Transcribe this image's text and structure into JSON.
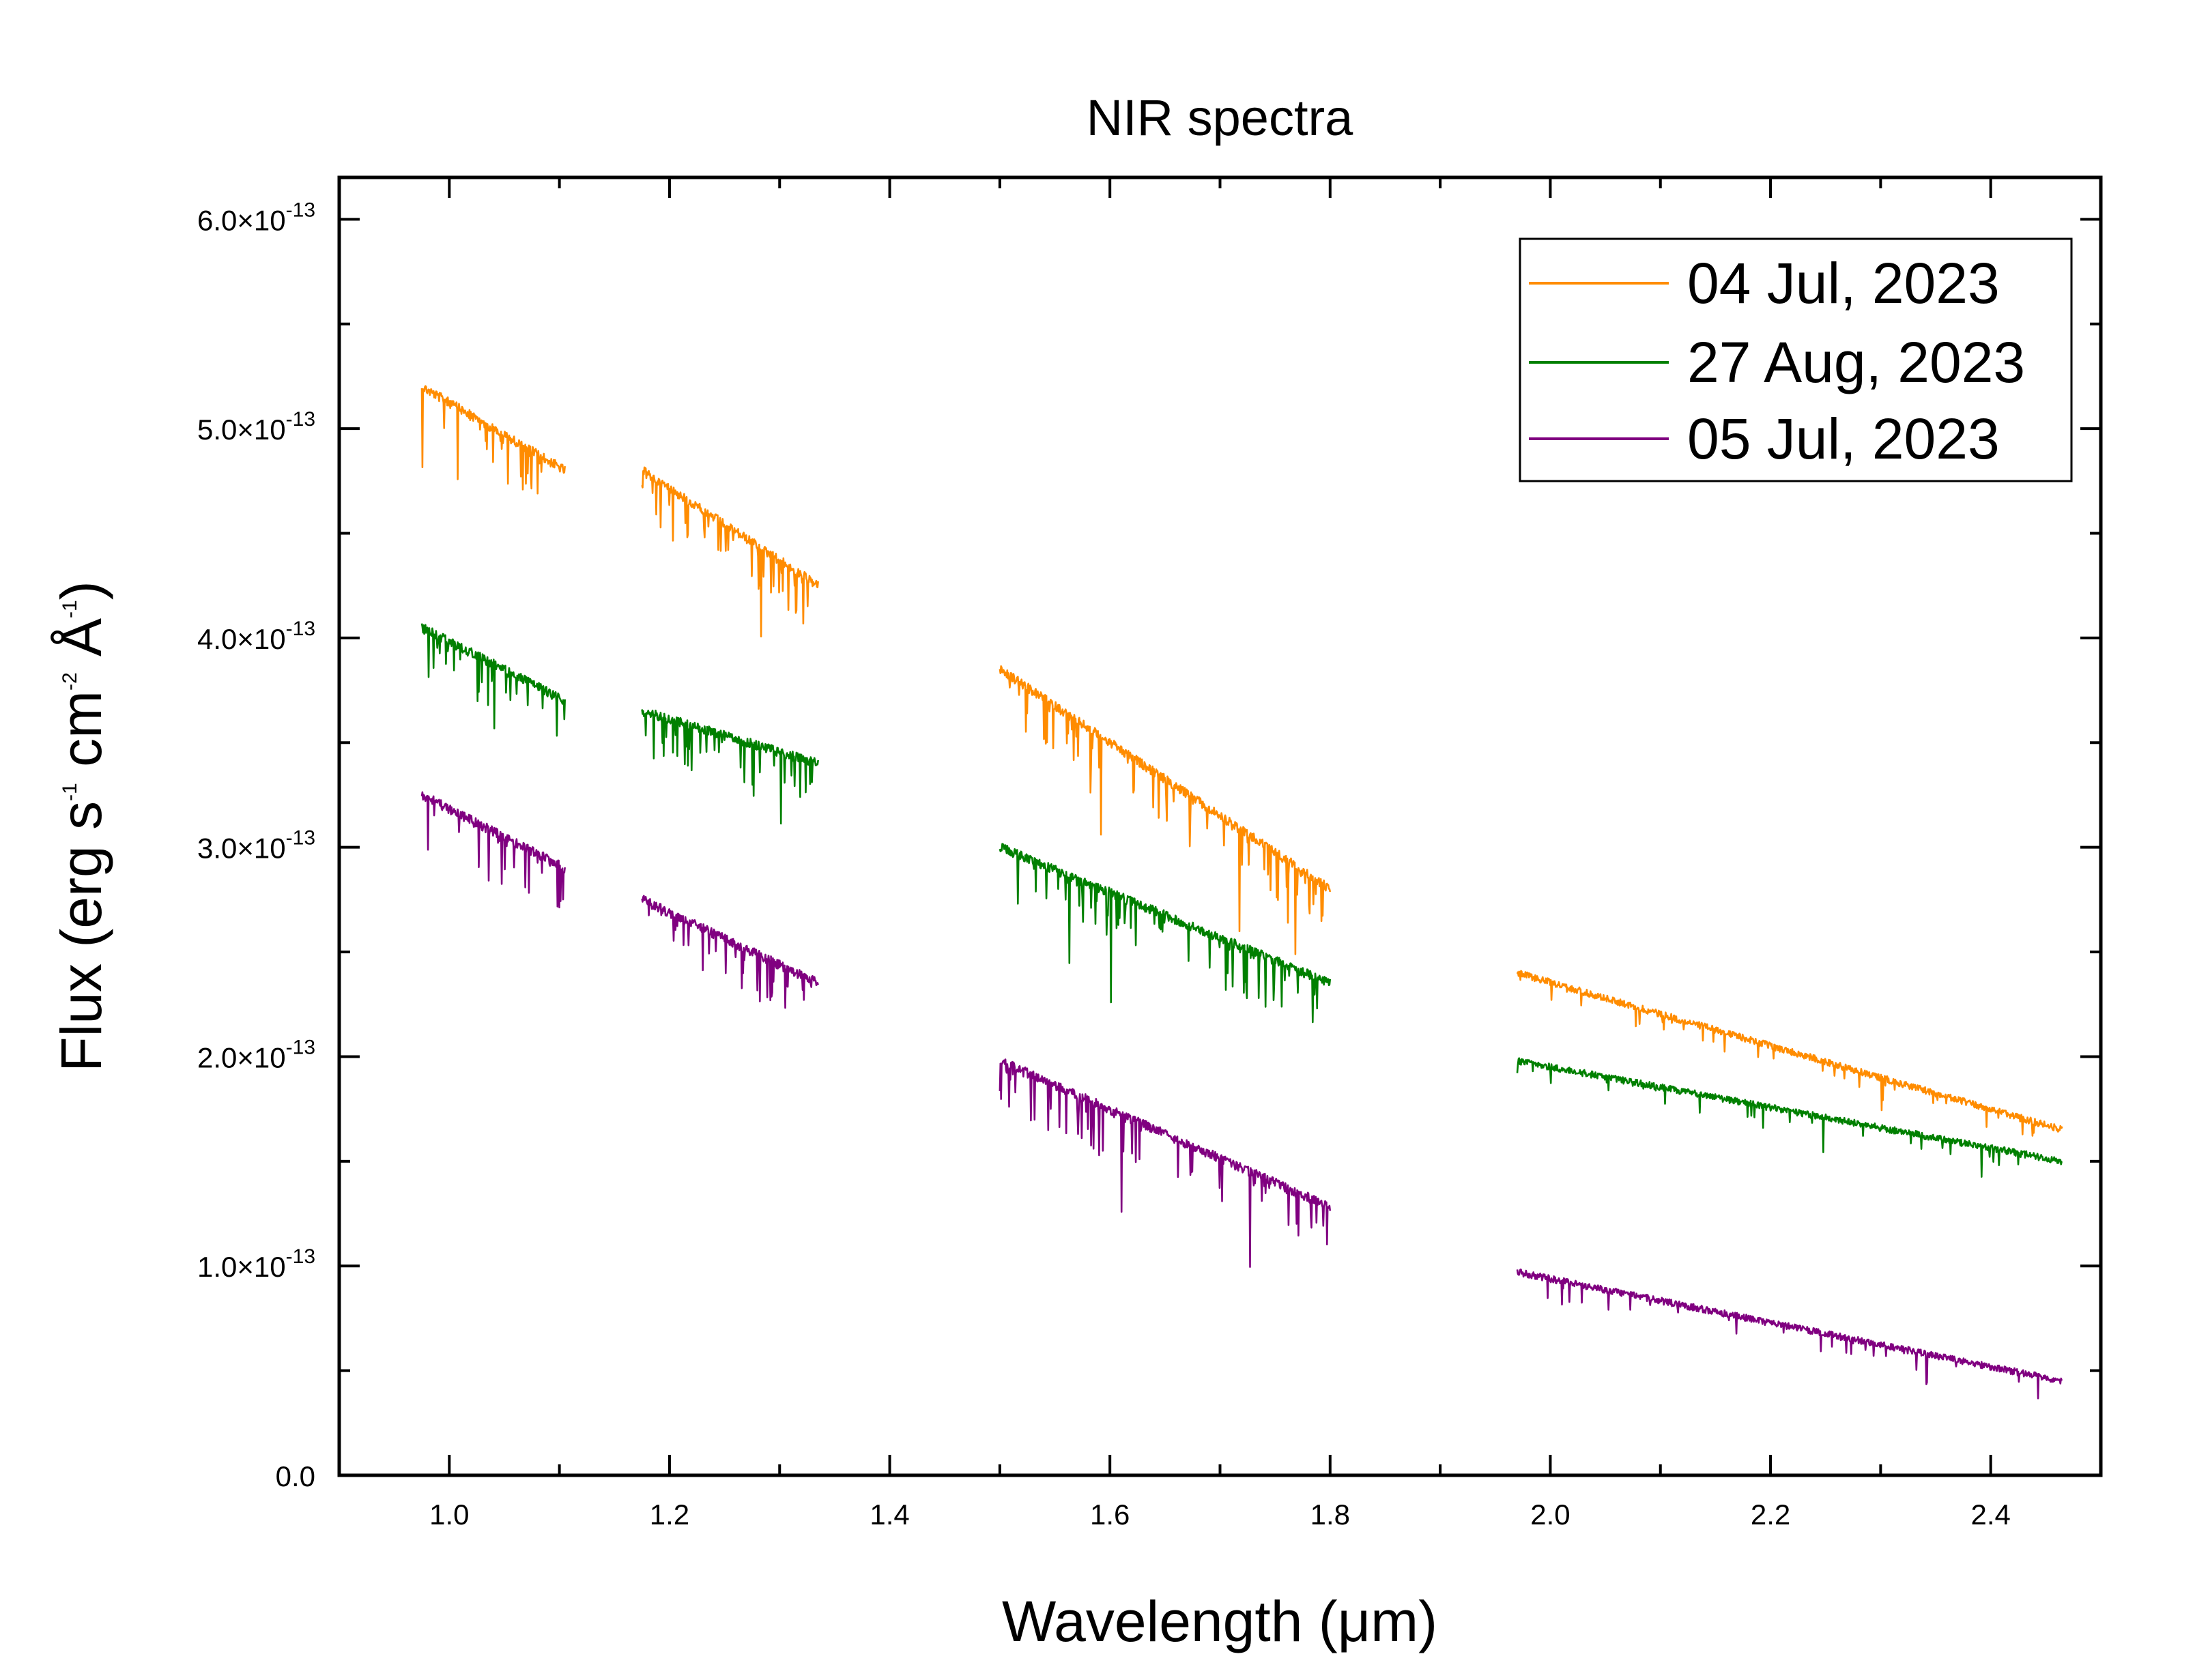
{
  "chart_data": {
    "type": "line",
    "title": "NIR spectra",
    "xlabel": "Wavelength (μm)",
    "ylabel": {
      "prefix": "Flux (erg s",
      "exp1": "-1",
      "mid1": " cm",
      "exp2": "-2",
      "mid2": " Å",
      "exp3": "-1",
      "suffix": ")"
    },
    "xlim": [
      0.9,
      2.5
    ],
    "ylim": [
      0,
      6.2e-13
    ],
    "grid": false,
    "legend_position": "top-right",
    "x_ticks": [
      {
        "value": 1.0,
        "label": "1.0"
      },
      {
        "value": 1.2,
        "label": "1.2"
      },
      {
        "value": 1.4,
        "label": "1.4"
      },
      {
        "value": 1.6,
        "label": "1.6"
      },
      {
        "value": 1.8,
        "label": "1.8"
      },
      {
        "value": 2.0,
        "label": "2.0"
      },
      {
        "value": 2.2,
        "label": "2.2"
      },
      {
        "value": 2.4,
        "label": "2.4"
      }
    ],
    "y_ticks": [
      {
        "value": 0,
        "mantissa": "0.0",
        "exponent": ""
      },
      {
        "value": 1e-13,
        "mantissa": "1.0×10",
        "exponent": "-13"
      },
      {
        "value": 2e-13,
        "mantissa": "2.0×10",
        "exponent": "-13"
      },
      {
        "value": 3e-13,
        "mantissa": "3.0×10",
        "exponent": "-13"
      },
      {
        "value": 4e-13,
        "mantissa": "4.0×10",
        "exponent": "-13"
      },
      {
        "value": 5e-13,
        "mantissa": "5.0×10",
        "exponent": "-13"
      },
      {
        "value": 6e-13,
        "mantissa": "6.0×10",
        "exponent": "-13"
      }
    ],
    "series": [
      {
        "name": "04 Jul, 2023",
        "color": "#FF8C00",
        "segments": [
          {
            "x_start": 0.975,
            "x_end": 1.105,
            "y_start": 5.2e-13,
            "y_end": 4.8e-13
          },
          {
            "x_start": 1.175,
            "x_end": 1.335,
            "y_start": 4.8e-13,
            "y_end": 4.25e-13
          },
          {
            "x_start": 1.5,
            "x_end": 1.8,
            "y_start": 3.85e-13,
            "y_end": 2.8e-13
          },
          {
            "x_start": 1.97,
            "x_end": 2.465,
            "y_start": 2.4e-13,
            "y_end": 1.65e-13
          }
        ]
      },
      {
        "name": "27 Aug, 2023",
        "color": "#008000",
        "segments": [
          {
            "x_start": 0.975,
            "x_end": 1.105,
            "y_start": 4.05e-13,
            "y_end": 3.7e-13
          },
          {
            "x_start": 1.175,
            "x_end": 1.335,
            "y_start": 3.65e-13,
            "y_end": 3.4e-13
          },
          {
            "x_start": 1.5,
            "x_end": 1.8,
            "y_start": 3e-13,
            "y_end": 2.35e-13
          },
          {
            "x_start": 1.97,
            "x_end": 2.465,
            "y_start": 1.98e-13,
            "y_end": 1.5e-13
          }
        ]
      },
      {
        "name": "05 Jul, 2023",
        "color": "#800080",
        "segments": [
          {
            "x_start": 0.975,
            "x_end": 1.105,
            "y_start": 3.25e-13,
            "y_end": 2.9e-13
          },
          {
            "x_start": 1.175,
            "x_end": 1.335,
            "y_start": 2.75e-13,
            "y_end": 2.35e-13
          },
          {
            "x_start": 1.5,
            "x_end": 1.8,
            "y_start": 1.98e-13,
            "y_end": 1.28e-13
          },
          {
            "x_start": 1.97,
            "x_end": 2.465,
            "y_start": 9.7e-14,
            "y_end": 4.5e-14
          }
        ]
      }
    ]
  }
}
